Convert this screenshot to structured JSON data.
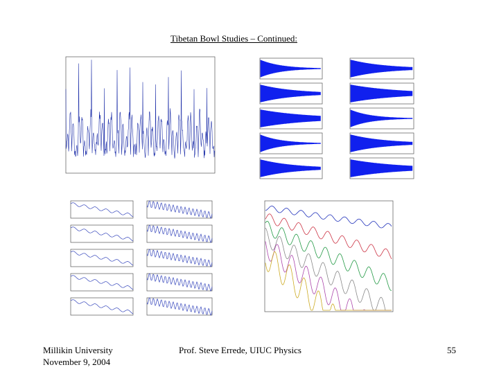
{
  "slide": {
    "title": "Tibetan Bowl Studies – Continued:",
    "footer": {
      "institution": "Millikin University",
      "date": "November 9, 2004",
      "author": "Prof. Steve Errede, UIUC Physics",
      "page_number": "55"
    }
  }
}
